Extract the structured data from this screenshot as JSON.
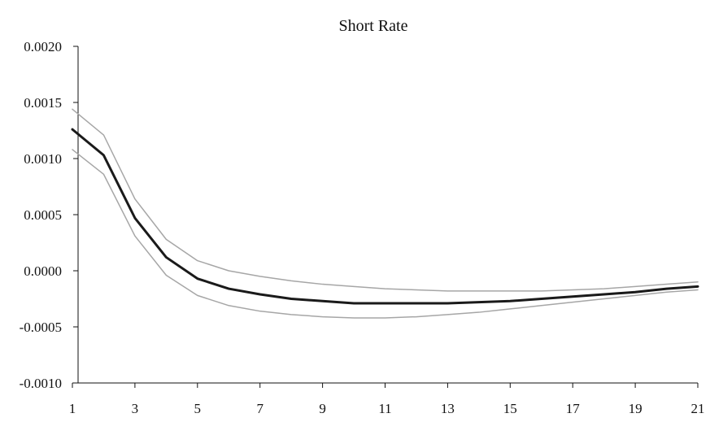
{
  "chart_data": {
    "type": "line",
    "title": "Short Rate",
    "xlabel": "",
    "ylabel": "",
    "x": [
      1,
      2,
      3,
      4,
      5,
      6,
      7,
      8,
      9,
      10,
      11,
      12,
      13,
      14,
      15,
      16,
      17,
      18,
      19,
      20,
      21
    ],
    "x_ticks": [
      "1",
      "3",
      "5",
      "7",
      "9",
      "11",
      "13",
      "15",
      "17",
      "19",
      "21"
    ],
    "x_tick_values": [
      1,
      3,
      5,
      7,
      9,
      11,
      13,
      15,
      17,
      19,
      21
    ],
    "y_ticks": [
      "0.0020",
      "0.0015",
      "0.0010",
      "0.0005",
      "0.0000",
      "-0.0005",
      "-0.0010"
    ],
    "y_tick_values": [
      0.002,
      0.0015,
      0.001,
      0.0005,
      0.0,
      -0.0005,
      -0.001
    ],
    "xlim": [
      1,
      21
    ],
    "ylim": [
      -0.001,
      0.002
    ],
    "grid": false,
    "legend": "none",
    "series": [
      {
        "role": "upper-band",
        "color": "#a6a6a6",
        "values": [
          0.00144,
          0.00121,
          0.00064,
          0.00028,
          9e-05,
          0.0,
          -5e-05,
          -9e-05,
          -0.00012,
          -0.00014,
          -0.00016,
          -0.00017,
          -0.00018,
          -0.00018,
          -0.00018,
          -0.00018,
          -0.00017,
          -0.00016,
          -0.00014,
          -0.00012,
          -0.0001
        ]
      },
      {
        "role": "estimate",
        "color": "#1a1a1a",
        "values": [
          0.00126,
          0.00103,
          0.00047,
          0.00012,
          -7e-05,
          -0.00016,
          -0.00021,
          -0.00025,
          -0.00027,
          -0.00029,
          -0.00029,
          -0.00029,
          -0.00029,
          -0.00028,
          -0.00027,
          -0.00025,
          -0.00023,
          -0.00021,
          -0.00019,
          -0.00016,
          -0.00014
        ]
      },
      {
        "role": "lower-band",
        "color": "#a6a6a6",
        "values": [
          0.00108,
          0.00086,
          0.00031,
          -4e-05,
          -0.00022,
          -0.00031,
          -0.00036,
          -0.00039,
          -0.00041,
          -0.00042,
          -0.00042,
          -0.00041,
          -0.00039,
          -0.00037,
          -0.00034,
          -0.00031,
          -0.00028,
          -0.00025,
          -0.00022,
          -0.00019,
          -0.00017
        ]
      }
    ]
  }
}
